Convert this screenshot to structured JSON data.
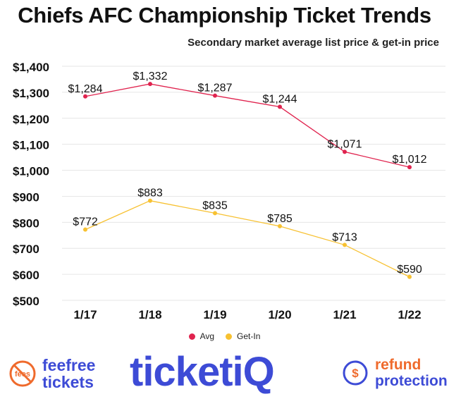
{
  "header": {
    "title": "Chiefs AFC Championship Ticket Trends",
    "subtitle": "Secondary market average list price & get-in price"
  },
  "chart_data": {
    "type": "line",
    "categories": [
      "1/17",
      "1/18",
      "1/19",
      "1/20",
      "1/21",
      "1/22"
    ],
    "series": [
      {
        "name": "Avg",
        "values": [
          1284,
          1332,
          1287,
          1244,
          1071,
          1012
        ],
        "labels": [
          "$1,284",
          "$1,332",
          "$1,287",
          "$1,244",
          "$1,071",
          "$1,012"
        ],
        "color": "#e0234e"
      },
      {
        "name": "Get-In",
        "values": [
          772,
          883,
          835,
          785,
          713,
          590
        ],
        "labels": [
          "$772",
          "$883",
          "$835",
          "$785",
          "$713",
          "$590"
        ],
        "color": "#f7c131"
      }
    ],
    "yticks": [
      500,
      600,
      700,
      800,
      900,
      1000,
      1100,
      1200,
      1300,
      1400
    ],
    "ytick_labels": [
      "$500",
      "$600",
      "$700",
      "$800",
      "$900",
      "$1,000",
      "$1,100",
      "$1,200",
      "$1,300",
      "$1,400"
    ],
    "ylim": [
      500,
      1400
    ],
    "grid": true,
    "legend_position": "bottom"
  },
  "footer": {
    "feefree_line1": "feefree",
    "feefree_line2": "tickets",
    "feefree_badge": "fees",
    "brand": "ticketiQ",
    "refund_line1": "refund",
    "refund_line2": "protection",
    "refund_badge": "$"
  },
  "colors": {
    "brand_blue": "#3d4bd6",
    "accent_orange": "#ef6a2c"
  }
}
